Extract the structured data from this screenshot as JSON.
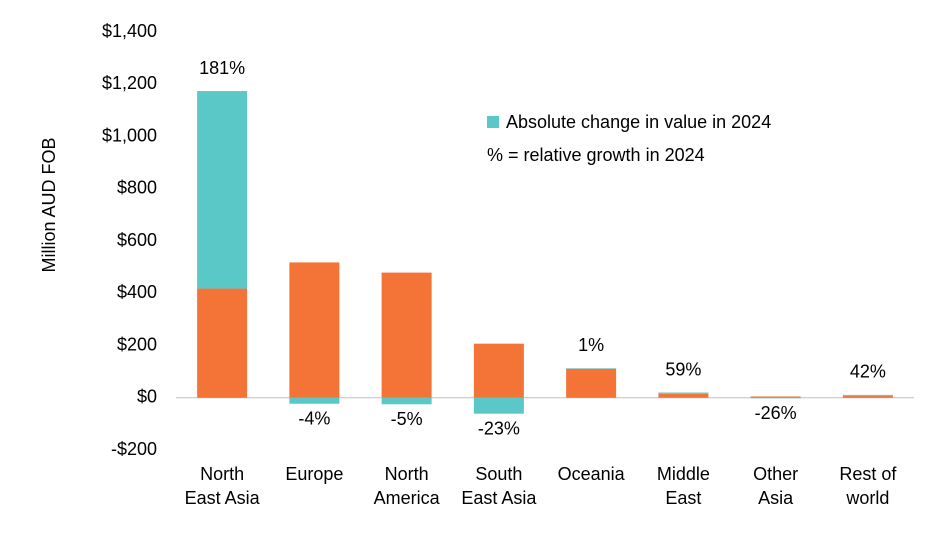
{
  "chart_data": {
    "type": "stacked_bar",
    "y_label": "Million AUD FOB",
    "categories": [
      "North East Asia",
      "Europe",
      "North America",
      "South East Asia",
      "Oceania",
      "Middle East",
      "Other Asia",
      "Rest of world"
    ],
    "series": [
      {
        "color": "#F47337",
        "values": [
          418,
          518,
          479,
          207,
          111,
          15,
          5,
          8
        ]
      },
      {
        "name": "Absolute change in value in 2024",
        "color": "#5BC8C8",
        "values": [
          756,
          -23,
          -25,
          -61,
          2,
          5,
          -2,
          3
        ]
      }
    ],
    "annotations": [
      "181%",
      "-4%",
      "-5%",
      "-23%",
      "1%",
      "59%",
      "-26%",
      "42%"
    ],
    "note": "% = relative growth in 2024",
    "ylim": [
      -200,
      1400
    ],
    "yticks": [
      {
        "value": -200,
        "label": "-$200"
      },
      {
        "value": 0,
        "label": "$0"
      },
      {
        "value": 200,
        "label": "$200"
      },
      {
        "value": 400,
        "label": "$400"
      },
      {
        "value": 600,
        "label": "$600"
      },
      {
        "value": 800,
        "label": "$800"
      },
      {
        "value": 1000,
        "label": "$1,000"
      },
      {
        "value": 1200,
        "label": "$1,200"
      },
      {
        "value": 1400,
        "label": "$1,400"
      }
    ]
  }
}
